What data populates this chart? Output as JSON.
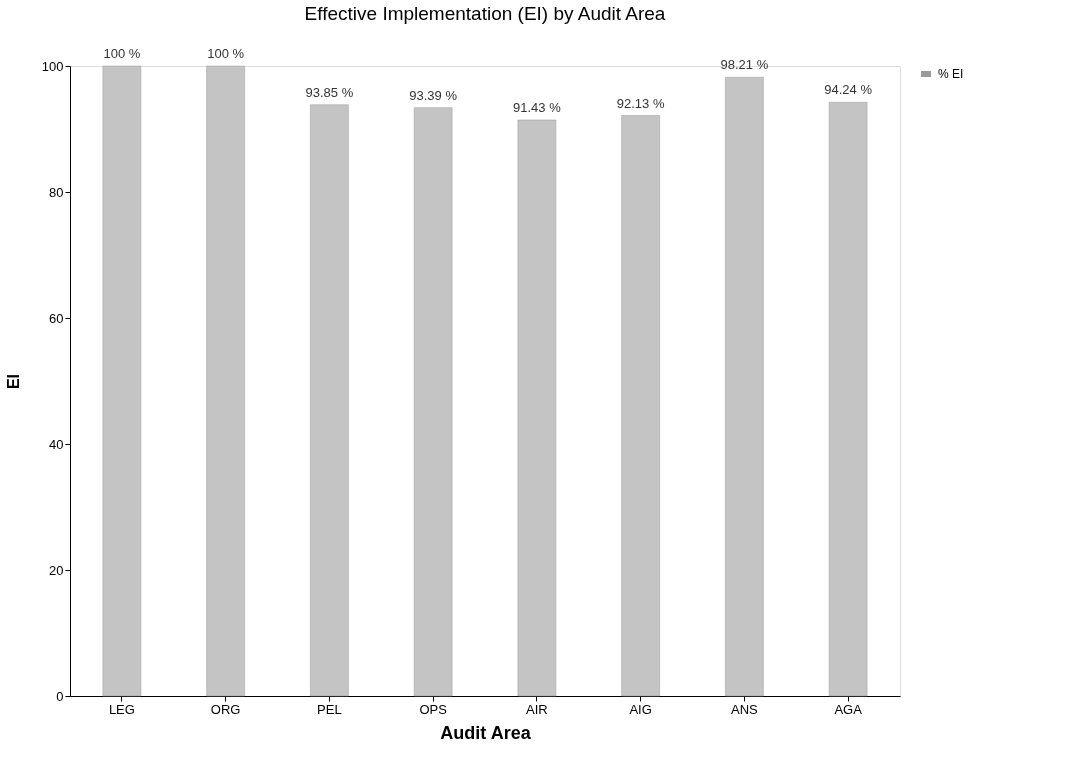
{
  "chart_data": {
    "type": "bar",
    "title": "Effective Implementation (EI) by Audit Area",
    "xlabel": "Audit Area",
    "ylabel": "EI",
    "categories": [
      "LEG",
      "ORG",
      "PEL",
      "OPS",
      "AIR",
      "AIG",
      "ANS",
      "AGA"
    ],
    "series": [
      {
        "name": "% EI",
        "color": "#c4c4c4",
        "values": [
          100,
          100,
          93.85,
          93.39,
          91.43,
          92.13,
          98.21,
          94.24
        ],
        "value_labels": [
          "100 %",
          "100 %",
          "93.85 %",
          "93.39 %",
          "91.43 %",
          "92.13 %",
          "98.21 %",
          "94.24 %"
        ]
      }
    ],
    "ylim": [
      0,
      100
    ],
    "yticks": [
      0,
      20,
      40,
      60,
      80,
      100
    ],
    "grid": false,
    "legend": "right"
  }
}
